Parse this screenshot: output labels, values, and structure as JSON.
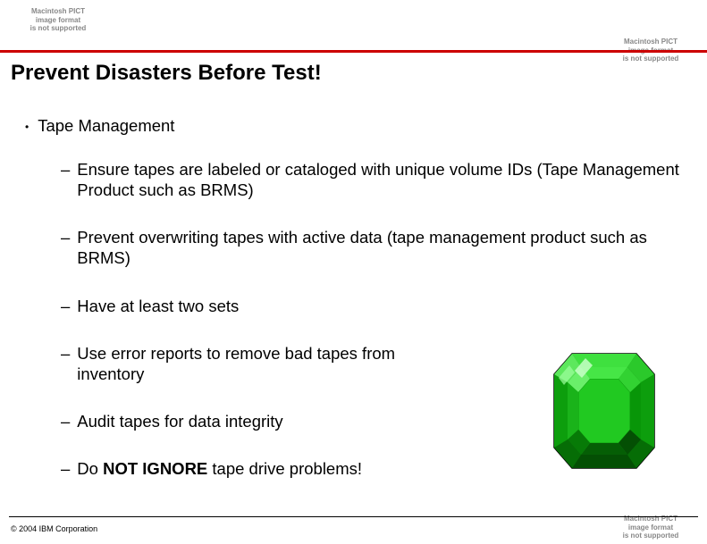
{
  "placeholders": {
    "text": "Macintosh PICT\nimage format\nis not supported"
  },
  "divider_color": "#cc0000",
  "title": "Prevent Disasters Before Test!",
  "main_bullet": "Tape Management",
  "sub_bullets": [
    "Ensure tapes are labeled or cataloged with unique volume IDs (Tape Management Product such as BRMS)",
    "Prevent overwriting tapes with active data  (tape management product such as BRMS)",
    "Have at least two sets",
    "Use error reports to remove bad tapes from inventory",
    "Audit tapes for data integrity"
  ],
  "last_bullet": {
    "prefix": "Do ",
    "bold": "NOT IGNORE",
    "suffix": " tape drive problems!"
  },
  "footer": "© 2004 IBM Corporation",
  "gem": {
    "outer_color": "#0b8f0b",
    "facet_light": "#3fe03f",
    "facet_mid": "#17b317",
    "facet_dark": "#066d06",
    "highlight": "#c7ffc7",
    "border": "#000000"
  }
}
